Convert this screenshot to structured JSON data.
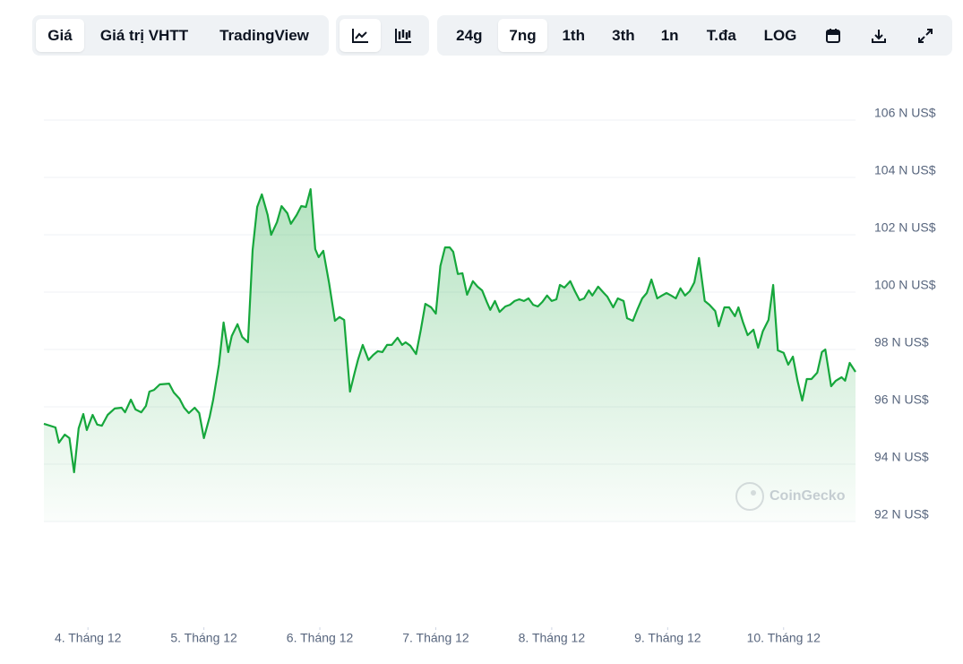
{
  "toolbar": {
    "tabs": [
      "Giá",
      "Giá trị VHTT",
      "TradingView"
    ],
    "ranges": [
      "24g",
      "7ng",
      "1th",
      "3th",
      "1n",
      "T.đa",
      "LOG"
    ]
  },
  "chart_data": {
    "type": "line",
    "color": "#16a73c",
    "watermark": "CoinGecko",
    "xlim": [
      3.62,
      10.62
    ],
    "ylim": [
      92,
      107
    ],
    "grid": true,
    "xticks": [
      {
        "value": 4,
        "label": "4. Tháng 12"
      },
      {
        "value": 5,
        "label": "5. Tháng 12"
      },
      {
        "value": 6,
        "label": "6. Tháng 12"
      },
      {
        "value": 7,
        "label": "7. Tháng 12"
      },
      {
        "value": 8,
        "label": "8. Tháng 12"
      },
      {
        "value": 9,
        "label": "9. Tháng 12"
      },
      {
        "value": 10,
        "label": "10. Tháng 12"
      }
    ],
    "yticks": [
      {
        "value": 92,
        "label": "92 N US$"
      },
      {
        "value": 94,
        "label": "94 N US$"
      },
      {
        "value": 96,
        "label": "96 N US$"
      },
      {
        "value": 98,
        "label": "98 N US$"
      },
      {
        "value": 100,
        "label": "100 N US$"
      },
      {
        "value": 102,
        "label": "102 N US$"
      },
      {
        "value": 104,
        "label": "104 N US$"
      },
      {
        "value": 106,
        "label": "106 N US$"
      }
    ],
    "x": [
      3.62,
      3.72,
      3.75,
      3.8,
      3.84,
      3.88,
      3.92,
      3.96,
      3.99,
      4.04,
      4.08,
      4.12,
      4.17,
      4.23,
      4.29,
      4.32,
      4.37,
      4.41,
      4.46,
      4.5,
      4.53,
      4.57,
      4.62,
      4.7,
      4.74,
      4.79,
      4.83,
      4.87,
      4.92,
      4.96,
      5.0,
      5.05,
      5.08,
      5.13,
      5.17,
      5.21,
      5.24,
      5.29,
      5.33,
      5.38,
      5.42,
      5.46,
      5.5,
      5.55,
      5.58,
      5.63,
      5.67,
      5.72,
      5.75,
      5.8,
      5.84,
      5.88,
      5.92,
      5.96,
      5.99,
      6.03,
      6.08,
      6.13,
      6.17,
      6.21,
      6.26,
      6.3,
      6.33,
      6.37,
      6.42,
      6.46,
      6.5,
      6.54,
      6.58,
      6.62,
      6.67,
      6.71,
      6.74,
      6.78,
      6.83,
      6.87,
      6.91,
      6.96,
      7.0,
      7.04,
      7.08,
      7.12,
      7.15,
      7.19,
      7.23,
      7.27,
      7.32,
      7.36,
      7.4,
      7.44,
      7.47,
      7.51,
      7.55,
      7.6,
      7.64,
      7.68,
      7.72,
      7.76,
      7.8,
      7.84,
      7.88,
      7.92,
      7.96,
      8.0,
      8.04,
      8.07,
      8.11,
      8.16,
      8.2,
      8.24,
      8.28,
      8.32,
      8.35,
      8.4,
      8.45,
      8.48,
      8.53,
      8.57,
      8.62,
      8.65,
      8.7,
      8.74,
      8.78,
      8.82,
      8.86,
      8.91,
      8.95,
      8.99,
      9.03,
      9.07,
      9.11,
      9.15,
      9.19,
      9.23,
      9.27,
      9.32,
      9.36,
      9.41,
      9.44,
      9.49,
      9.53,
      9.58,
      9.61,
      9.65,
      9.69,
      9.74,
      9.78,
      9.82,
      9.87,
      9.91,
      9.95,
      10.0,
      10.04,
      10.08,
      10.12,
      10.16,
      10.2,
      10.24,
      10.29,
      10.33,
      10.36,
      10.41,
      10.45,
      10.5,
      10.53,
      10.57,
      10.62
    ],
    "values": [
      95.41,
      95.28,
      94.75,
      95.03,
      94.91,
      93.72,
      95.25,
      95.75,
      95.19,
      95.72,
      95.38,
      95.34,
      95.72,
      95.94,
      95.97,
      95.81,
      96.25,
      95.91,
      95.81,
      96.03,
      96.53,
      96.59,
      96.78,
      96.81,
      96.5,
      96.28,
      95.97,
      95.78,
      95.97,
      95.78,
      94.91,
      95.66,
      96.25,
      97.47,
      98.94,
      97.91,
      98.47,
      98.88,
      98.44,
      98.25,
      101.47,
      102.97,
      103.41,
      102.69,
      102.0,
      102.44,
      103.0,
      102.75,
      102.38,
      102.69,
      103.0,
      102.97,
      103.59,
      101.5,
      101.22,
      101.44,
      100.31,
      99.0,
      99.13,
      99.03,
      96.53,
      97.19,
      97.66,
      98.16,
      97.63,
      97.81,
      97.94,
      97.91,
      98.16,
      98.16,
      98.41,
      98.16,
      98.25,
      98.13,
      97.84,
      98.66,
      99.59,
      99.47,
      99.25,
      100.91,
      101.56,
      101.56,
      101.41,
      100.63,
      100.66,
      99.91,
      100.38,
      100.19,
      100.06,
      99.66,
      99.38,
      99.69,
      99.31,
      99.5,
      99.56,
      99.69,
      99.75,
      99.69,
      99.78,
      99.56,
      99.5,
      99.66,
      99.88,
      99.69,
      99.75,
      100.25,
      100.16,
      100.38,
      100.03,
      99.72,
      99.78,
      100.06,
      99.88,
      100.19,
      99.97,
      99.84,
      99.47,
      99.78,
      99.69,
      99.09,
      99.0,
      99.41,
      99.78,
      99.97,
      100.44,
      99.78,
      99.88,
      99.97,
      99.88,
      99.78,
      100.13,
      99.88,
      100.03,
      100.34,
      101.19,
      99.69,
      99.56,
      99.34,
      98.81,
      99.47,
      99.47,
      99.16,
      99.47,
      98.94,
      98.5,
      98.69,
      98.06,
      98.63,
      99.03,
      100.25,
      97.97,
      97.88,
      97.47,
      97.75,
      96.91,
      96.22,
      96.97,
      96.97,
      97.19,
      97.91,
      98.0,
      96.72,
      96.91,
      97.03,
      96.91,
      97.53,
      97.22
    ]
  }
}
